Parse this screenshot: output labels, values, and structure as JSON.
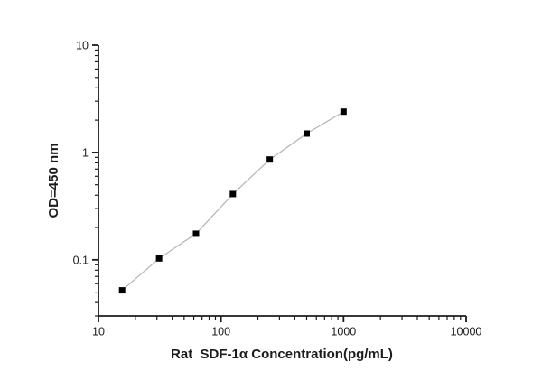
{
  "chart_data": {
    "type": "line",
    "title": "",
    "xlabel": "Rat  SDF-1α Concentration(pg/mL)",
    "ylabel": "OD=450 nm",
    "xscale": "log",
    "yscale": "log",
    "xlim": [
      10,
      10000
    ],
    "ylim": [
      0.03,
      10
    ],
    "x_ticks": {
      "values": [
        10,
        100,
        1000,
        10000
      ],
      "labels": [
        "10",
        "100",
        "1000",
        "10000"
      ]
    },
    "y_ticks": {
      "values": [
        10,
        1,
        0.1
      ],
      "labels": [
        "10",
        "1",
        "0.1"
      ]
    },
    "grid": false,
    "legend": false,
    "marker": "filled-square",
    "series": [
      {
        "x": [
          15.6,
          31.25,
          62.5,
          125,
          250,
          500,
          1000
        ],
        "y": [
          0.052,
          0.103,
          0.175,
          0.41,
          0.86,
          1.5,
          2.4
        ]
      }
    ],
    "colors": {
      "marker": "#000000",
      "line": "#b3b3b3",
      "axis": "#1c1c1c",
      "text": "#1c1c1c",
      "background": "#ffffff"
    }
  }
}
